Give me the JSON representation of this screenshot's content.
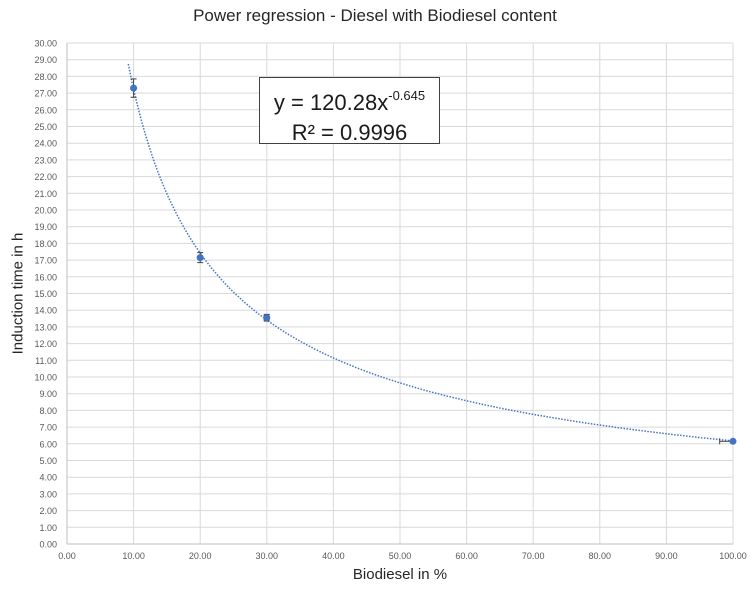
{
  "chart_data": {
    "type": "scatter",
    "title": "Power regression - Diesel with Biodiesel content",
    "xlabel": "Biodiesel in %",
    "ylabel": "Induction time in h",
    "xlim": [
      0,
      100
    ],
    "ylim": [
      0,
      30
    ],
    "x_ticks": [
      "0.00",
      "10.00",
      "20.00",
      "30.00",
      "40.00",
      "50.00",
      "60.00",
      "70.00",
      "80.00",
      "90.00",
      "100.00"
    ],
    "y_ticks": [
      "0.00",
      "1.00",
      "2.00",
      "3.00",
      "4.00",
      "5.00",
      "6.00",
      "7.00",
      "8.00",
      "9.00",
      "10.00",
      "11.00",
      "12.00",
      "13.00",
      "14.00",
      "15.00",
      "16.00",
      "17.00",
      "18.00",
      "19.00",
      "20.00",
      "21.00",
      "22.00",
      "23.00",
      "24.00",
      "25.00",
      "26.00",
      "27.00",
      "28.00",
      "29.00",
      "30.00"
    ],
    "grid": true,
    "series": [
      {
        "name": "Diesel with Biodiesel content",
        "color": "#4472C4",
        "x": [
          10,
          20,
          30,
          100
        ],
        "y": [
          27.3,
          17.15,
          13.55,
          6.15
        ],
        "y_error": [
          0.55,
          0.3,
          0.2,
          0.05
        ],
        "x_error": [
          0,
          0,
          0.4,
          2
        ]
      }
    ],
    "trendline": {
      "type": "power",
      "a": 120.28,
      "b": -0.645,
      "style": "dotted",
      "color": "#4472C4"
    },
    "annotation": {
      "equation_prefix": "y = 120.28x",
      "equation_exponent": "-0.645",
      "r_squared": "R² = 0.9996"
    }
  }
}
